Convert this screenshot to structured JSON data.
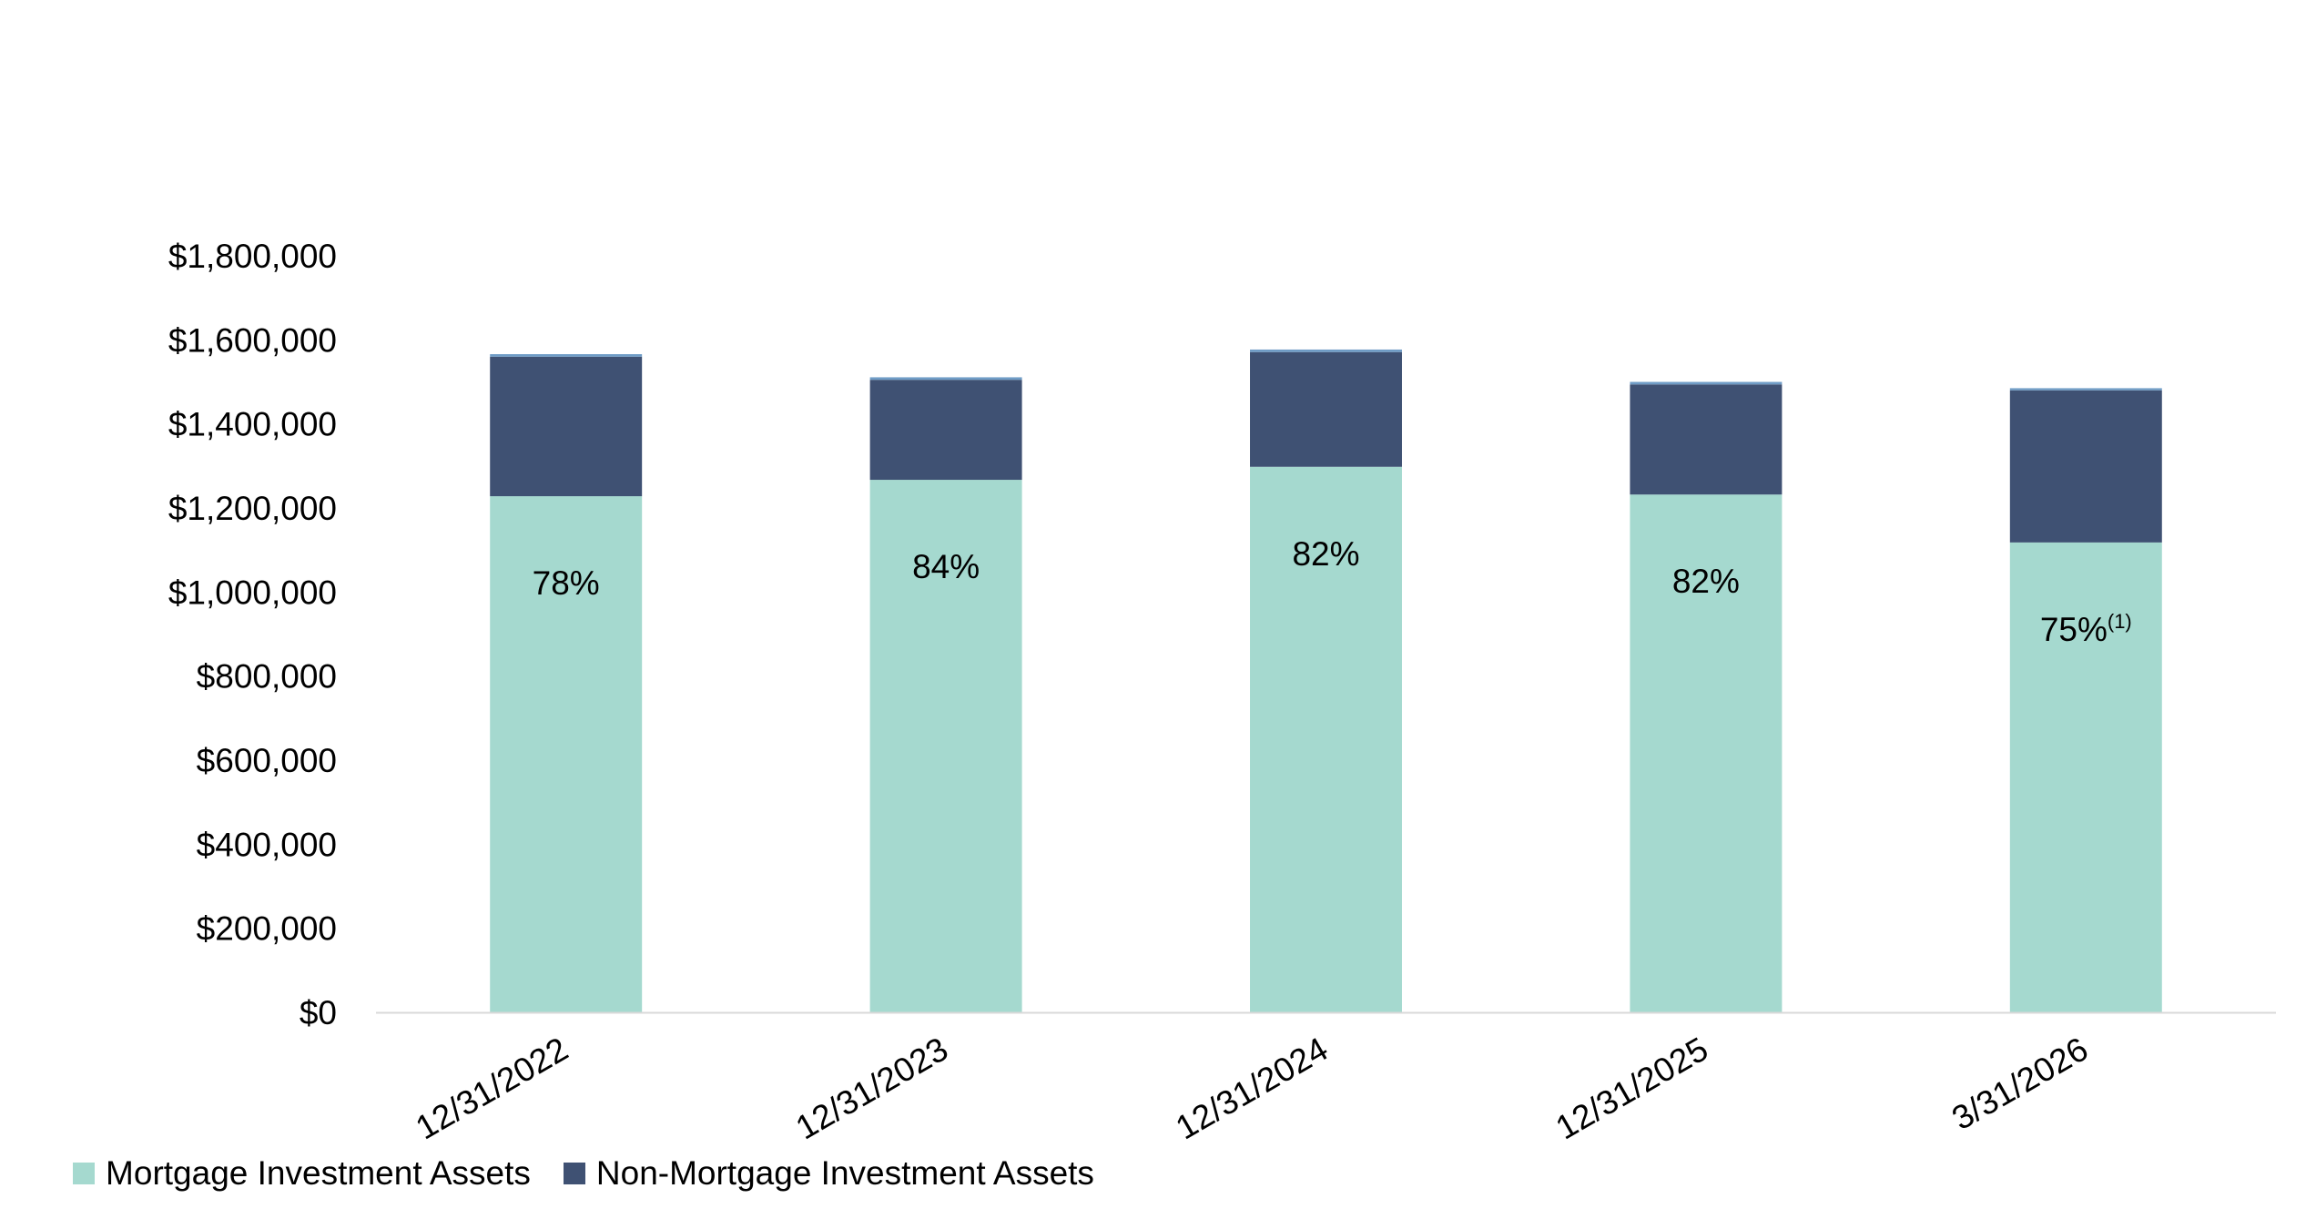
{
  "chart_data": {
    "type": "bar",
    "stacked": true,
    "categories": [
      "12/31/2022",
      "12/31/2023",
      "12/31/2024",
      "12/31/2025",
      "3/31/2026"
    ],
    "series": [
      {
        "name": "Mortgage Investment Assets",
        "color": "#a5d9cf",
        "values": [
          1228000,
          1267000,
          1298000,
          1232000,
          1118000
        ]
      },
      {
        "name": "Non-Mortgage Investment Assets",
        "color": "#3f5173",
        "values": [
          332000,
          238000,
          273000,
          262000,
          362000
        ]
      },
      {
        "name": "",
        "color": "#6f9cc6",
        "values": [
          6000,
          6000,
          6000,
          6000,
          5000
        ]
      }
    ],
    "data_labels": [
      {
        "text": "78%",
        "sup": ""
      },
      {
        "text": "84%",
        "sup": ""
      },
      {
        "text": "82%",
        "sup": ""
      },
      {
        "text": "82%",
        "sup": ""
      },
      {
        "text": "75%",
        "sup": "(1)"
      }
    ],
    "y_ticks": [
      "$0",
      "$200,000",
      "$400,000",
      "$600,000",
      "$800,000",
      "$1,000,000",
      "$1,200,000",
      "$1,400,000",
      "$1,600,000",
      "$1,800,000"
    ],
    "ylim": [
      0,
      1800000
    ],
    "grid": false,
    "legend_position": "bottom"
  },
  "legend": [
    {
      "label": "Mortgage Investment Assets",
      "color": "#a5d9cf"
    },
    {
      "label": "Non-Mortgage Investment Assets",
      "color": "#3f5173"
    }
  ]
}
